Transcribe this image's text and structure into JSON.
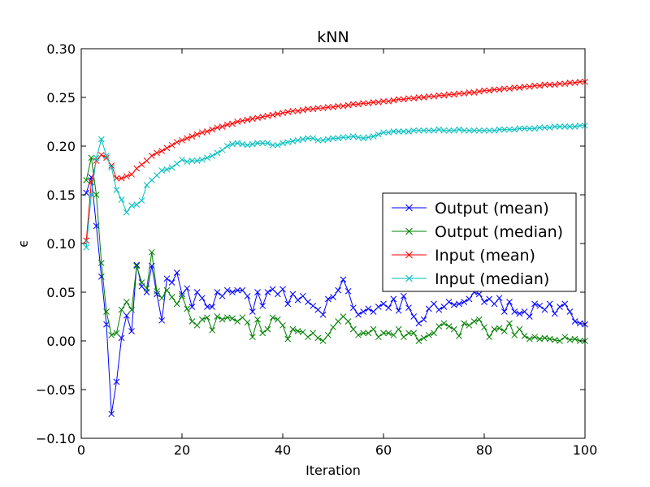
{
  "chart_data": {
    "type": "line",
    "title": "kNN",
    "xlabel": "Iteration",
    "ylabel": "ϵ",
    "xlim": [
      0,
      100
    ],
    "ylim": [
      -0.1,
      0.3
    ],
    "xticks": [
      "0",
      "20",
      "40",
      "60",
      "80",
      "100"
    ],
    "yticks": [
      "−0.10",
      "−0.05",
      "0.00",
      "0.05",
      "0.10",
      "0.15",
      "0.20",
      "0.25",
      "0.30"
    ],
    "grid": false,
    "legend_position": "center-right",
    "marker": "x",
    "x": [
      1,
      2,
      3,
      4,
      5,
      6,
      7,
      8,
      9,
      10,
      11,
      12,
      13,
      14,
      15,
      16,
      17,
      18,
      19,
      20,
      21,
      22,
      23,
      24,
      25,
      26,
      27,
      28,
      29,
      30,
      31,
      32,
      33,
      34,
      35,
      36,
      37,
      38,
      39,
      40,
      41,
      42,
      43,
      44,
      45,
      46,
      47,
      48,
      49,
      50,
      51,
      52,
      53,
      54,
      55,
      56,
      57,
      58,
      59,
      60,
      61,
      62,
      63,
      64,
      65,
      66,
      67,
      68,
      69,
      70,
      71,
      72,
      73,
      74,
      75,
      76,
      77,
      78,
      79,
      80,
      81,
      82,
      83,
      84,
      85,
      86,
      87,
      88,
      89,
      90,
      91,
      92,
      93,
      94,
      95,
      96,
      97,
      98,
      99,
      100
    ],
    "series": [
      {
        "name": "Output (mean)",
        "color": "#0000ff",
        "values": [
          0.152,
          0.168,
          0.118,
          0.066,
          0.017,
          -0.075,
          -0.042,
          0.003,
          0.026,
          0.01,
          0.078,
          0.056,
          0.05,
          0.077,
          0.048,
          0.021,
          0.064,
          0.06,
          0.07,
          0.048,
          0.054,
          0.035,
          0.05,
          0.044,
          0.035,
          0.035,
          0.05,
          0.046,
          0.052,
          0.05,
          0.052,
          0.052,
          0.046,
          0.03,
          0.05,
          0.036,
          0.05,
          0.053,
          0.048,
          0.053,
          0.038,
          0.048,
          0.042,
          0.046,
          0.04,
          0.036,
          0.032,
          0.027,
          0.043,
          0.045,
          0.052,
          0.063,
          0.051,
          0.034,
          0.027,
          0.03,
          0.033,
          0.03,
          0.035,
          0.038,
          0.034,
          0.043,
          0.031,
          0.046,
          0.034,
          0.025,
          0.018,
          0.022,
          0.033,
          0.038,
          0.032,
          0.035,
          0.04,
          0.037,
          0.038,
          0.04,
          0.043,
          0.05,
          0.048,
          0.04,
          0.043,
          0.038,
          0.044,
          0.03,
          0.04,
          0.03,
          0.028,
          0.03,
          0.025,
          0.038,
          0.036,
          0.032,
          0.038,
          0.028,
          0.035,
          0.038,
          0.03,
          0.02,
          0.018,
          0.017
        ]
      },
      {
        "name": "Output (median)",
        "color": "#008000",
        "values": [
          0.165,
          0.188,
          0.15,
          0.08,
          0.03,
          0.006,
          0.008,
          0.032,
          0.04,
          0.032,
          0.077,
          0.06,
          0.054,
          0.091,
          0.051,
          0.044,
          0.052,
          0.045,
          0.038,
          0.046,
          0.033,
          0.02,
          0.016,
          0.022,
          0.024,
          0.011,
          0.025,
          0.022,
          0.024,
          0.023,
          0.02,
          0.024,
          0.019,
          0.004,
          0.022,
          0.008,
          0.012,
          0.024,
          0.022,
          0.016,
          0.002,
          0.012,
          0.01,
          0.009,
          0.004,
          0.008,
          0.003,
          0.0,
          0.006,
          0.014,
          0.02,
          0.025,
          0.02,
          0.012,
          0.006,
          0.008,
          0.008,
          0.012,
          0.004,
          0.008,
          0.008,
          0.006,
          0.012,
          0.004,
          0.008,
          0.008,
          0.0,
          0.003,
          0.006,
          0.008,
          0.015,
          0.018,
          0.015,
          0.012,
          0.005,
          0.018,
          0.016,
          0.02,
          0.022,
          0.014,
          0.004,
          0.012,
          0.013,
          0.01,
          0.018,
          0.006,
          0.012,
          0.005,
          0.002,
          0.004,
          0.002,
          0.003,
          0.002,
          0.001,
          0.0,
          0.004,
          0.001,
          0.002,
          0.0,
          0.0
        ]
      },
      {
        "name": "Input (mean)",
        "color": "#ff0000",
        "values": [
          0.103,
          0.163,
          0.185,
          0.191,
          0.188,
          0.18,
          0.167,
          0.167,
          0.169,
          0.171,
          0.177,
          0.181,
          0.185,
          0.19,
          0.193,
          0.195,
          0.198,
          0.201,
          0.204,
          0.206,
          0.208,
          0.21,
          0.212,
          0.214,
          0.215,
          0.217,
          0.219,
          0.22,
          0.222,
          0.223,
          0.225,
          0.226,
          0.227,
          0.228,
          0.229,
          0.23,
          0.231,
          0.232,
          0.233,
          0.234,
          0.235,
          0.236,
          0.236,
          0.237,
          0.238,
          0.238,
          0.239,
          0.239,
          0.24,
          0.24,
          0.241,
          0.241,
          0.242,
          0.243,
          0.243,
          0.244,
          0.244,
          0.245,
          0.245,
          0.246,
          0.246,
          0.247,
          0.248,
          0.248,
          0.249,
          0.249,
          0.25,
          0.25,
          0.251,
          0.251,
          0.252,
          0.252,
          0.253,
          0.253,
          0.254,
          0.254,
          0.255,
          0.255,
          0.256,
          0.257,
          0.257,
          0.258,
          0.258,
          0.259,
          0.259,
          0.26,
          0.26,
          0.261,
          0.261,
          0.262,
          0.262,
          0.263,
          0.263,
          0.263,
          0.264,
          0.264,
          0.265,
          0.265,
          0.266,
          0.266
        ]
      },
      {
        "name": "Input (median)",
        "color": "#00bfbf",
        "values": [
          0.096,
          0.15,
          0.188,
          0.207,
          0.19,
          0.178,
          0.155,
          0.145,
          0.132,
          0.139,
          0.14,
          0.144,
          0.16,
          0.165,
          0.17,
          0.175,
          0.176,
          0.178,
          0.182,
          0.186,
          0.184,
          0.185,
          0.185,
          0.186,
          0.188,
          0.19,
          0.193,
          0.196,
          0.2,
          0.202,
          0.203,
          0.202,
          0.201,
          0.202,
          0.203,
          0.203,
          0.203,
          0.201,
          0.201,
          0.203,
          0.204,
          0.205,
          0.206,
          0.207,
          0.208,
          0.208,
          0.206,
          0.206,
          0.207,
          0.208,
          0.208,
          0.209,
          0.209,
          0.21,
          0.209,
          0.208,
          0.209,
          0.21,
          0.212,
          0.214,
          0.214,
          0.215,
          0.215,
          0.215,
          0.215,
          0.216,
          0.216,
          0.216,
          0.216,
          0.216,
          0.217,
          0.216,
          0.216,
          0.216,
          0.217,
          0.216,
          0.216,
          0.216,
          0.216,
          0.216,
          0.216,
          0.216,
          0.217,
          0.217,
          0.217,
          0.217,
          0.218,
          0.218,
          0.218,
          0.218,
          0.219,
          0.219,
          0.219,
          0.22,
          0.22,
          0.22,
          0.22,
          0.22,
          0.221,
          0.221
        ]
      }
    ]
  }
}
